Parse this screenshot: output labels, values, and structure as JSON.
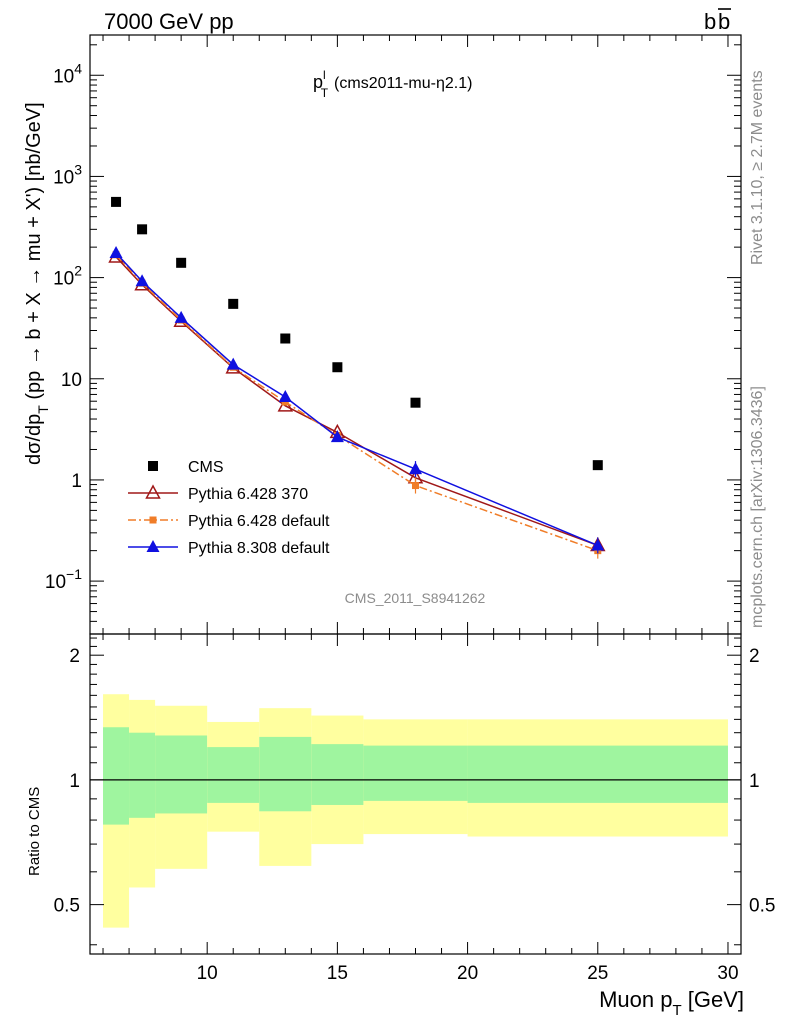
{
  "header": {
    "left": "7000 GeV pp",
    "right_base": "b",
    "right_bar": "b"
  },
  "title": {
    "main": "p",
    "sup": "l",
    "sub": "T",
    "suffix": "(cms2011-mu-η2.1)"
  },
  "side_labels": {
    "rivet": "Rivet 3.1.10, ≥ 2.7M events",
    "mcplots": "mcplots.cern.ch [arXiv:1306.3436]"
  },
  "analysis_id": "CMS_2011_S8941262",
  "ratio_label": "Ratio to CMS",
  "chart_data": [
    {
      "type": "scatter",
      "ylabel": {
        "pre": "dσ/dp",
        "sub": "T",
        "post": " (pp → b + X → mu + X')  [nb/GeV]"
      },
      "yscale": "log",
      "xlim": [
        5.5,
        30.5
      ],
      "ylim": [
        0.03,
        25000
      ],
      "y_ticks": [
        {
          "value": 0.1,
          "base": "10",
          "exp": "−1"
        },
        {
          "value": 1,
          "label": "1"
        },
        {
          "value": 10,
          "label": "10"
        },
        {
          "value": 100,
          "base": "10",
          "exp": "2"
        },
        {
          "value": 1000,
          "base": "10",
          "exp": "3"
        },
        {
          "value": 10000,
          "base": "10",
          "exp": "4"
        }
      ],
      "legend_position": "lower-left",
      "series": [
        {
          "name": "CMS",
          "marker": "square-filled",
          "color": "#000000",
          "x": [
            6.5,
            7.5,
            9,
            11,
            13,
            15,
            18,
            25
          ],
          "y": [
            560,
            300,
            140,
            55,
            25,
            13,
            5.8,
            1.4
          ]
        },
        {
          "name": "Pythia 6.428 370",
          "marker": "triangle-open",
          "color": "#a01818",
          "line": "solid",
          "x": [
            6.5,
            7.5,
            9,
            11,
            13,
            15,
            18,
            25
          ],
          "y": [
            160,
            85,
            37,
            12.8,
            5.4,
            2.95,
            1.05,
            0.225
          ]
        },
        {
          "name": "Pythia 6.428 default",
          "marker": "square-small",
          "color": "#f07d28",
          "line": "dash-dot",
          "x": [
            6.5,
            7.5,
            9,
            11,
            13,
            15,
            18,
            25
          ],
          "y": [
            168,
            88,
            38,
            13,
            5.9,
            2.75,
            0.88,
            0.2
          ]
        },
        {
          "name": "Pythia 8.308 default",
          "marker": "triangle-filled",
          "color": "#1010e0",
          "line": "solid",
          "x": [
            6.5,
            7.5,
            9,
            11,
            13,
            15,
            18,
            25
          ],
          "y": [
            175,
            92,
            40,
            13.8,
            6.6,
            2.65,
            1.28,
            0.225
          ]
        }
      ]
    },
    {
      "type": "area",
      "xlabel": {
        "pre": "Muon p",
        "sub": "T",
        "post": " [GeV]"
      },
      "ylabel": "Ratio to CMS",
      "xlim": [
        5.5,
        30.5
      ],
      "ylim": [
        0.38,
        2.25
      ],
      "x_ticks": [
        10,
        15,
        20,
        25,
        30
      ],
      "y_ticks": [
        0.5,
        1,
        2
      ],
      "reference_line": 1,
      "bands": {
        "bin_edges": [
          6,
          7,
          8,
          10,
          12,
          14,
          16,
          20,
          30
        ],
        "inner_lower": [
          0.78,
          0.81,
          0.83,
          0.88,
          0.84,
          0.87,
          0.89,
          0.88
        ],
        "inner_upper": [
          1.34,
          1.3,
          1.28,
          1.2,
          1.27,
          1.22,
          1.21,
          1.21
        ],
        "outer_lower": [
          0.44,
          0.55,
          0.61,
          0.75,
          0.62,
          0.7,
          0.74,
          0.73
        ],
        "outer_upper": [
          1.61,
          1.56,
          1.51,
          1.38,
          1.49,
          1.43,
          1.4,
          1.4
        ],
        "inner_color": "#9ff59f",
        "outer_color": "#ffff9f"
      }
    }
  ]
}
